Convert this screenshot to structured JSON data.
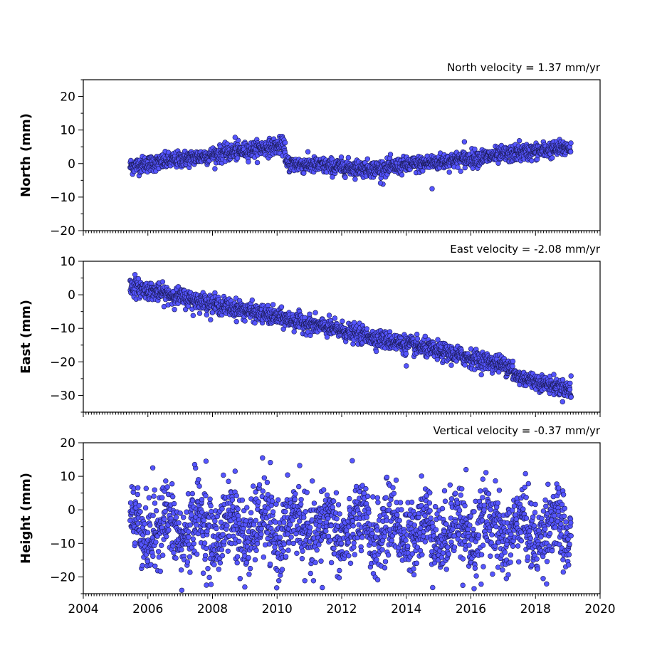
{
  "chart_data": [
    {
      "type": "scatter",
      "panel": "north",
      "title": "North velocity = 1.37 mm/yr",
      "ylabel": "North (mm)",
      "xlim": [
        2004,
        2020
      ],
      "ylim": [
        -20,
        25
      ],
      "yticks": [
        -20,
        -10,
        0,
        10,
        20
      ],
      "marker_color": "#5555ff",
      "series": [
        {
          "segments": [
            {
              "x_start": 2005.45,
              "x_end": 2010.25,
              "y_start": -0.8,
              "y_end": 5.5,
              "noise": 1.2
            },
            {
              "x_start": 2010.25,
              "x_end": 2013.0,
              "y_start": 0.0,
              "y_end": -1.6,
              "noise": 1.2
            },
            {
              "x_start": 2013.0,
              "x_end": 2019.1,
              "y_start": -1.6,
              "y_end": 4.8,
              "noise": 1.2
            }
          ],
          "outliers": [
            {
              "x": 2008.7,
              "y": 7.8
            },
            {
              "x": 2013.2,
              "y": -5.8
            },
            {
              "x": 2014.8,
              "y": -7.5
            },
            {
              "x": 2015.8,
              "y": 6.5
            },
            {
              "x": 2017.5,
              "y": 6.8
            }
          ]
        }
      ]
    },
    {
      "type": "scatter",
      "panel": "east",
      "title": "East velocity = -2.08 mm/yr",
      "ylabel": "East (mm)",
      "xlim": [
        2004,
        2020
      ],
      "ylim": [
        -35,
        10
      ],
      "yticks": [
        -30,
        -20,
        -10,
        0,
        10
      ],
      "marker_color": "#5555ff",
      "series": [
        {
          "segments": [
            {
              "x_start": 2005.45,
              "x_end": 2017.3,
              "y_start": 2.5,
              "y_end": -21.5,
              "noise": 1.3
            },
            {
              "x_start": 2017.3,
              "x_end": 2019.1,
              "y_start": -24.0,
              "y_end": -28.5,
              "noise": 1.2
            }
          ],
          "outliers": [
            {
              "x": 2005.6,
              "y": 6.0
            },
            {
              "x": 2007.4,
              "y": -6.2
            },
            {
              "x": 2014.0,
              "y": -21.2
            },
            {
              "x": 2019.1,
              "y": -24.2
            },
            {
              "x": 2019.1,
              "y": -30.5
            }
          ]
        }
      ]
    },
    {
      "type": "scatter",
      "panel": "height",
      "title": "Vertical velocity = -0.37 mm/yr",
      "ylabel": "Height (mm)",
      "xlim": [
        2004,
        2020
      ],
      "ylim": [
        -25,
        20
      ],
      "yticks": [
        -20,
        -10,
        0,
        10,
        20
      ],
      "xticks": [
        2004,
        2006,
        2008,
        2010,
        2012,
        2014,
        2016,
        2018,
        2020
      ],
      "marker_color": "#5555ff",
      "series": [
        {
          "segments": [
            {
              "x_start": 2005.45,
              "x_end": 2019.1,
              "y_start": -5.5,
              "y_end": -6.0,
              "noise": 5.5,
              "annual_amplitude": 4.0
            }
          ],
          "outliers": [
            {
              "x": 2006.15,
              "y": 12.5
            },
            {
              "x": 2007.45,
              "y": 13.5
            },
            {
              "x": 2007.8,
              "y": 14.5
            },
            {
              "x": 2008.7,
              "y": 11.5
            },
            {
              "x": 2009.55,
              "y": 15.5
            },
            {
              "x": 2010.7,
              "y": 13.2
            },
            {
              "x": 2015.85,
              "y": 12.0
            },
            {
              "x": 2007.05,
              "y": -24.0
            },
            {
              "x": 2009.0,
              "y": -23.0
            },
            {
              "x": 2011.4,
              "y": -23.2
            },
            {
              "x": 2015.75,
              "y": -22.5
            },
            {
              "x": 2016.1,
              "y": -23.5
            }
          ]
        }
      ]
    }
  ]
}
